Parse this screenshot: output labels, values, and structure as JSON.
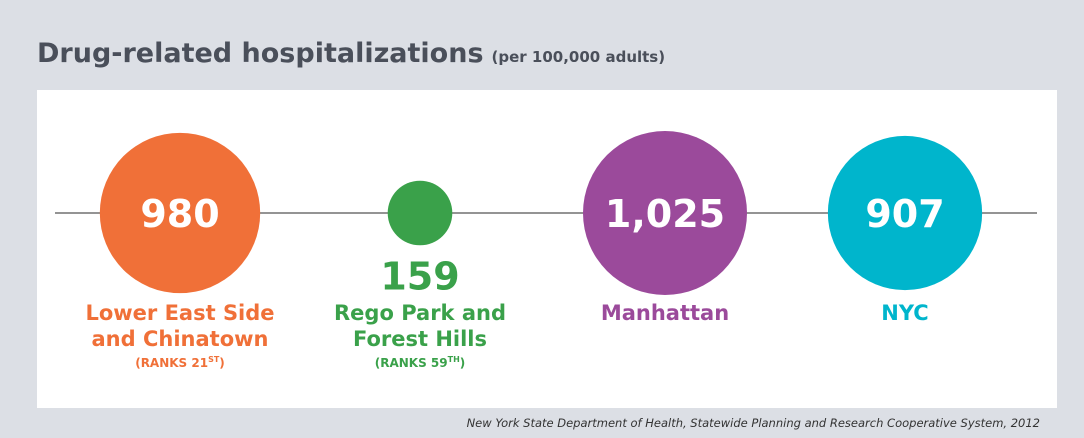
{
  "chart_data": {
    "type": "bubble",
    "title": "Drug-related hospitalizations",
    "subtitle": "(per 100,000 adults)",
    "categories": [
      "Lower East Side and Chinatown",
      "Rego Park and Forest Hills",
      "Manhattan",
      "NYC"
    ],
    "values": [
      980,
      159,
      1025,
      907
    ],
    "value_labels": [
      "980",
      "159",
      "1,025",
      "907"
    ],
    "colors": [
      "#f07038",
      "#3aa14a",
      "#9b4a9b",
      "#00b5cc"
    ],
    "ranks": [
      {
        "text": "(RANKS 21",
        "suffix": "ST",
        "end": ")"
      },
      {
        "text": "(RANKS 59",
        "suffix": "TH",
        "end": ")"
      },
      null,
      null
    ],
    "source": "New York State Department of Health, Statewide Planning and Research Cooperative System, 2012"
  }
}
